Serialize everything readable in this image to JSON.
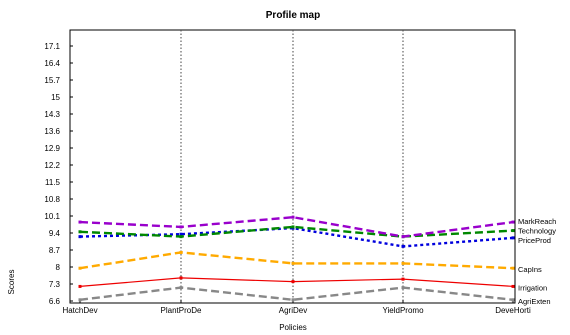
{
  "chart_data": {
    "type": "line",
    "title": "Profile map",
    "xlabel": "Policies",
    "ylabel": "Scores",
    "categories": [
      "HatchDev",
      "PlantProDe",
      "AgriDev",
      "YieldPromo",
      "DeveHorti"
    ],
    "yticks": [
      "17.1",
      "16.4",
      "15.7",
      "15",
      "14.3",
      "13.6",
      "12.9",
      "12.2",
      "11.5",
      "10.8",
      "10.1",
      "9.4",
      "8.7",
      "8",
      "7.3",
      "6.6"
    ],
    "ylim": [
      6.6,
      17.1
    ],
    "grid": "vertical dotted lines at categories",
    "series": [
      {
        "name": "MarkReach",
        "values": [
          9.85,
          9.65,
          10.05,
          9.25,
          9.85
        ],
        "color": "#9900cc",
        "dash": "long-dash"
      },
      {
        "name": "Technology",
        "values": [
          9.45,
          9.25,
          9.65,
          9.25,
          9.5
        ],
        "color": "#008800",
        "dash": "long-dash"
      },
      {
        "name": "PriceProd",
        "values": [
          9.25,
          9.35,
          9.6,
          8.85,
          9.2
        ],
        "color": "#0000dd",
        "dash": "short-dash"
      },
      {
        "name": "CapIns",
        "values": [
          7.95,
          8.6,
          8.15,
          8.15,
          7.95
        ],
        "color": "#ffaa00",
        "dash": "long-dash"
      },
      {
        "name": "Irrigation",
        "values": [
          7.2,
          7.55,
          7.4,
          7.5,
          7.2
        ],
        "color": "#ee0000",
        "dash": "solid"
      },
      {
        "name": "AgriExten",
        "values": [
          6.65,
          7.15,
          6.65,
          7.15,
          6.65
        ],
        "color": "#888888",
        "dash": "long-dash"
      }
    ]
  }
}
